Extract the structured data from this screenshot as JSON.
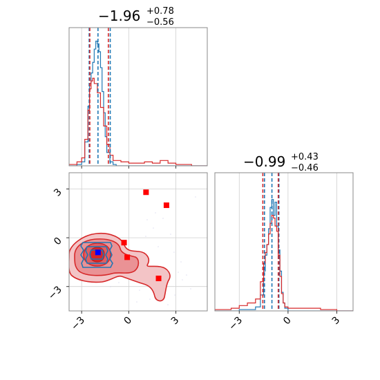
{
  "chart_data": [
    {
      "type": "histogram",
      "panel": "top-left",
      "title_main": "−1.96",
      "title_sup": "+0.78",
      "title_sub": "−0.56",
      "xlim": [
        -3.8,
        5.0
      ],
      "xticks": [
        -3,
        0,
        3
      ],
      "grid": true,
      "series": [
        {
          "color": "#1f77b4",
          "bins_x": [
            -3.8,
            -3.3,
            -3.0,
            -2.8,
            -2.6,
            -2.5,
            -2.4,
            -2.3,
            -2.2,
            -2.1,
            -2.0,
            -1.9,
            -1.8,
            -1.7,
            -1.6,
            -1.5,
            -1.4,
            -1.2,
            -1.0,
            -0.8,
            5.0
          ],
          "heights": [
            0,
            0.01,
            0.03,
            0.18,
            0.45,
            0.62,
            0.7,
            0.78,
            0.88,
            0.94,
            0.92,
            0.86,
            0.74,
            0.56,
            0.4,
            0.22,
            0.1,
            0.03,
            0.01,
            0
          ]
        },
        {
          "color": "#d62728",
          "bins_x": [
            -3.8,
            -3.3,
            -3.0,
            -2.8,
            -2.6,
            -2.5,
            -2.4,
            -2.3,
            -2.2,
            -2.0,
            -1.8,
            -1.6,
            -1.4,
            -1.2,
            -1.0,
            -0.5,
            0.0,
            0.5,
            1.0,
            1.5,
            2.0,
            2.5,
            3.0,
            4.0,
            5.0
          ],
          "heights": [
            0.01,
            0.03,
            0.06,
            0.2,
            0.42,
            0.58,
            0.64,
            0.66,
            0.62,
            0.55,
            0.44,
            0.3,
            0.16,
            0.08,
            0.04,
            0.03,
            0.02,
            0.02,
            0.03,
            0.02,
            0.04,
            0.02,
            0.01,
            0
          ]
        }
      ],
      "quantile_lines": [
        {
          "x": -2.52,
          "color": "#1f77b4"
        },
        {
          "x": -1.96,
          "color": "#1f77b4"
        },
        {
          "x": -1.18,
          "color": "#1f77b4"
        },
        {
          "x": -2.48,
          "color": "#d62728"
        },
        {
          "x": -1.3,
          "color": "#d62728"
        }
      ]
    },
    {
      "type": "contour",
      "panel": "bottom-left",
      "xlim": [
        -3.8,
        5.0
      ],
      "ylim": [
        -4.5,
        4.0
      ],
      "xticks": [
        -3,
        0,
        3
      ],
      "yticks": [
        -3,
        0,
        3
      ],
      "grid": true,
      "red_markers": [
        [
          1.1,
          2.8
        ],
        [
          2.4,
          2.0
        ],
        [
          -0.3,
          -0.3
        ],
        [
          -0.1,
          -1.2
        ],
        [
          1.9,
          -2.5
        ]
      ],
      "blue_marker": [
        -1.96,
        -0.9
      ]
    },
    {
      "type": "histogram",
      "panel": "bottom-right",
      "title_main": "−0.99",
      "title_sup": "+0.43",
      "title_sub": "−0.46",
      "xlim": [
        -4.5,
        4.0
      ],
      "xticks": [
        -3,
        0,
        3
      ],
      "grid": true,
      "series": [
        {
          "color": "#1f77b4",
          "bins_x": [
            -4.5,
            -3.0,
            -2.0,
            -1.7,
            -1.5,
            -1.4,
            -1.3,
            -1.2,
            -1.1,
            -1.0,
            -0.9,
            -0.8,
            -0.7,
            -0.6,
            -0.5,
            -0.4,
            -0.3,
            -0.2,
            0.0,
            4.0
          ],
          "heights": [
            0,
            0.01,
            0.03,
            0.12,
            0.3,
            0.42,
            0.5,
            0.62,
            0.78,
            0.84,
            0.72,
            0.82,
            0.64,
            0.46,
            0.3,
            0.14,
            0.06,
            0.02,
            0
          ],
          "visible_heights": true
        },
        {
          "color": "#d62728",
          "bins_x": [
            -4.5,
            -4.0,
            -3.5,
            -3.0,
            -2.5,
            -2.0,
            -1.7,
            -1.5,
            -1.4,
            -1.3,
            -1.2,
            -1.1,
            -1.0,
            -0.9,
            -0.8,
            -0.7,
            -0.6,
            -0.5,
            -0.4,
            -0.3,
            -0.2,
            0.0,
            1.0,
            2.0,
            3.0,
            4.0
          ],
          "heights": [
            0.01,
            0.01,
            0.02,
            0.04,
            0.06,
            0.09,
            0.22,
            0.36,
            0.44,
            0.5,
            0.58,
            0.66,
            0.72,
            0.7,
            0.64,
            0.6,
            0.42,
            0.26,
            0.13,
            0.06,
            0.03,
            0.02,
            0.02,
            0.01,
            0
          ]
        }
      ],
      "quantile_lines": [
        {
          "x": -1.45,
          "color": "#1f77b4"
        },
        {
          "x": -0.99,
          "color": "#1f77b4"
        },
        {
          "x": -0.56,
          "color": "#1f77b4"
        },
        {
          "x": -1.55,
          "color": "#d62728"
        },
        {
          "x": -0.6,
          "color": "#d62728"
        }
      ]
    }
  ]
}
